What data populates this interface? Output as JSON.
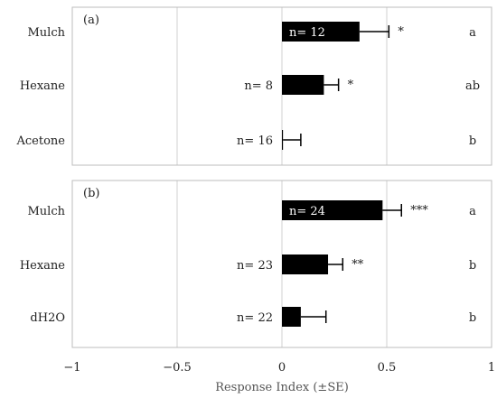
{
  "chart_data": {
    "type": "bar",
    "orientation": "horizontal",
    "xlabel": "Response Index (±SE)",
    "xlim": [
      -1,
      1
    ],
    "xticks": [
      -1,
      -0.5,
      0,
      0.5,
      1
    ],
    "xtick_labels": [
      "−1",
      "−0.5",
      "0",
      "0.5",
      "1"
    ],
    "grid": "vertical",
    "panels": [
      {
        "label": "(a)",
        "categories": [
          "Mulch",
          "Hexane",
          "Acetone"
        ],
        "values": [
          0.37,
          0.2,
          0.005
        ],
        "errors": [
          0.14,
          0.07,
          0.085
        ],
        "n_labels": [
          "n= 12",
          "n= 8",
          "n= 16"
        ],
        "significance": [
          "*",
          "*",
          ""
        ],
        "groups": [
          "a",
          "ab",
          "b"
        ]
      },
      {
        "label": "(b)",
        "categories": [
          "Mulch",
          "Hexane",
          "dH2O"
        ],
        "values": [
          0.48,
          0.22,
          0.09
        ],
        "errors": [
          0.09,
          0.07,
          0.12
        ],
        "n_labels": [
          "n= 24",
          "n= 23",
          "n= 22"
        ],
        "significance": [
          "***",
          "**",
          ""
        ],
        "groups": [
          "a",
          "b",
          "b"
        ]
      }
    ]
  }
}
